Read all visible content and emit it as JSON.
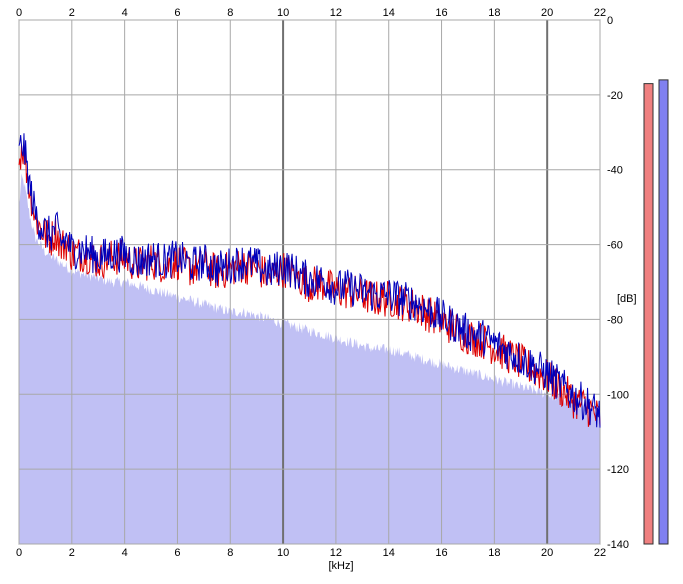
{
  "chart_data": {
    "type": "area",
    "xlabel": "[kHz]",
    "ylabel": "[dB]",
    "xlim": [
      0,
      22
    ],
    "ylim": [
      -140,
      0
    ],
    "x_ticks": [
      "0",
      "2",
      "4",
      "6",
      "8",
      "10",
      "12",
      "14",
      "16",
      "18",
      "20",
      "22"
    ],
    "y_ticks": [
      "0",
      "-20",
      "-40",
      "-60",
      "-80",
      "-100",
      "-120",
      "-140"
    ],
    "x_tick_values": [
      0,
      2,
      4,
      6,
      8,
      10,
      12,
      14,
      16,
      18,
      20,
      22
    ],
    "y_tick_values": [
      0,
      -20,
      -40,
      -60,
      -80,
      -100,
      -120,
      -140
    ],
    "grid": true,
    "x": [
      0,
      0.1,
      0.2,
      0.3,
      0.4,
      0.5,
      0.6,
      0.8,
      1.0,
      1.2,
      1.4,
      1.6,
      1.8,
      2.0,
      2.5,
      3.0,
      3.5,
      4.0,
      4.5,
      5.0,
      5.5,
      6.0,
      6.5,
      7.0,
      7.5,
      8.0,
      8.5,
      9.0,
      9.5,
      10.0,
      10.5,
      11.0,
      11.5,
      12.0,
      12.5,
      13.0,
      13.5,
      14.0,
      14.5,
      15.0,
      15.5,
      16.0,
      16.5,
      17.0,
      17.5,
      18.0,
      18.5,
      19.0,
      19.5,
      20.0,
      20.5,
      21.0,
      21.5,
      22.0
    ],
    "series": [
      {
        "color": "#dd0000",
        "values": [
          -38,
          -33,
          -35,
          -40,
          -45,
          -48,
          -52,
          -55,
          -57,
          -58,
          -56,
          -60,
          -59,
          -62,
          -62,
          -64,
          -63,
          -63,
          -65,
          -64,
          -65,
          -64,
          -66,
          -65,
          -67,
          -66,
          -65,
          -66,
          -68,
          -66,
          -68,
          -70,
          -70,
          -72,
          -72,
          -73,
          -74,
          -74,
          -75,
          -76,
          -78,
          -80,
          -82,
          -84,
          -85,
          -87,
          -89,
          -91,
          -93,
          -95,
          -98,
          -101,
          -103,
          -106
        ]
      },
      {
        "color": "#0000bb",
        "values": [
          -36,
          -32,
          -34,
          -39,
          -44,
          -47,
          -51,
          -54,
          -56,
          -57,
          -55,
          -59,
          -58,
          -61,
          -61,
          -63,
          -62,
          -62,
          -64,
          -63,
          -64,
          -63,
          -65,
          -64,
          -66,
          -65,
          -64,
          -65,
          -67,
          -65,
          -67,
          -69,
          -69,
          -71,
          -71,
          -72,
          -73,
          -73,
          -74,
          -75,
          -77,
          -79,
          -81,
          -83,
          -84,
          -86,
          -88,
          -90,
          -92,
          -94,
          -97,
          -100,
          -102,
          -105
        ]
      },
      {
        "color": "#c0c0f4",
        "values": [
          -50,
          -42,
          -44,
          -48,
          -52,
          -55,
          -58,
          -60,
          -62,
          -63,
          -64,
          -65,
          -66,
          -67,
          -68,
          -69,
          -70,
          -70,
          -71,
          -72,
          -73,
          -74,
          -75,
          -76,
          -77,
          -78,
          -78,
          -79,
          -80,
          -81,
          -82,
          -83,
          -84,
          -85,
          -86,
          -87,
          -88,
          -88,
          -89,
          -90,
          -91,
          -92,
          -93,
          -94,
          -95,
          -96,
          -97,
          -98,
          -99,
          -100,
          -101,
          -103,
          -104,
          -106
        ]
      }
    ],
    "level_meters": [
      {
        "color": "#f08080",
        "value": -17
      },
      {
        "color": "#8080f0",
        "value": -16
      }
    ]
  }
}
